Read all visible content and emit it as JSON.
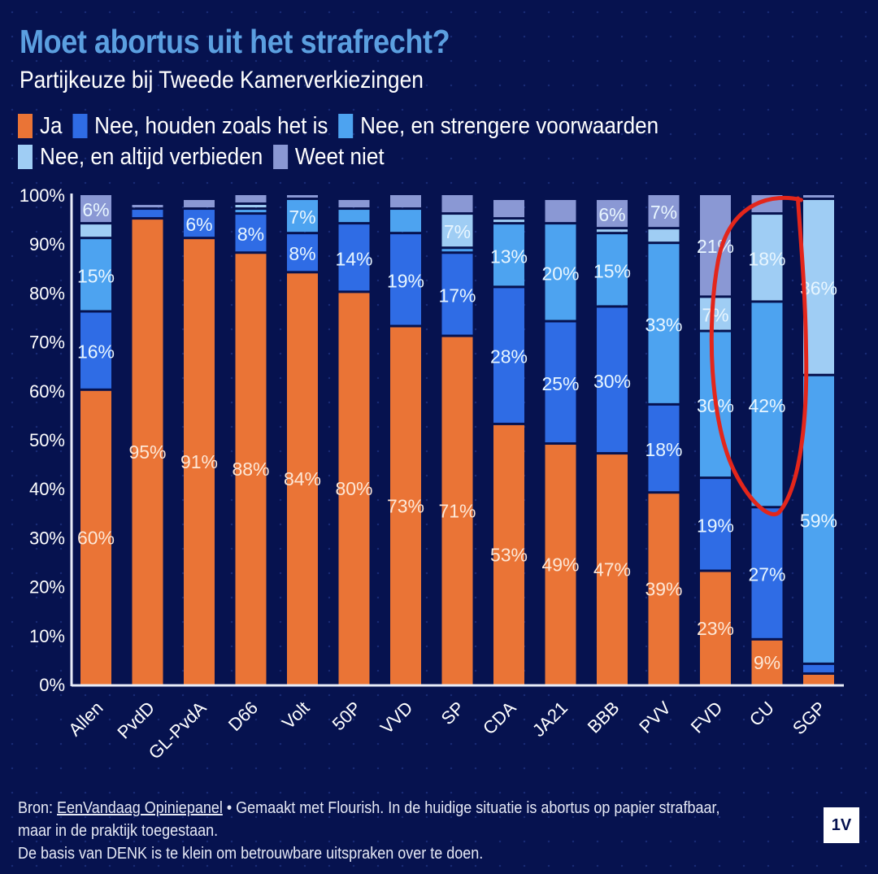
{
  "header": {
    "title": "Moet abortus uit het strafrecht?",
    "subtitle": "Partijkeuze bij Tweede Kamerverkiezingen"
  },
  "footer": {
    "source_prefix": "Bron: ",
    "source_link": "EenVandaag Opiniepanel",
    "line1_rest": " • Gemaakt met Flourish. In de huidige situatie is abortus op papier strafbaar, maar in de praktijk toegestaan.",
    "line2": "De basis van DENK is te klein om betrouwbare uitspraken over te doen.",
    "logo": "1V"
  },
  "annotation": {
    "type": "hand-drawn-circle",
    "color": "#e3261b",
    "target": "CU"
  },
  "chart_data": {
    "type": "bar",
    "stacked": true,
    "title": "Moet abortus uit het strafrecht?",
    "subtitle": "Partijkeuze bij Tweede Kamerverkiezingen",
    "xlabel": "",
    "ylabel": "",
    "ylim": [
      0,
      100
    ],
    "yticks": [
      "0%",
      "10%",
      "20%",
      "30%",
      "40%",
      "50%",
      "60%",
      "70%",
      "80%",
      "90%",
      "100%"
    ],
    "grid": false,
    "legend_position": "top-left",
    "categories": [
      "Allen",
      "PvdD",
      "GL-PvdA",
      "D66",
      "Volt",
      "50P",
      "VVD",
      "SP",
      "CDA",
      "JA21",
      "BBB",
      "PVV",
      "FVD",
      "CU",
      "SGP"
    ],
    "series": [
      {
        "name": "Ja",
        "color": "#ea7436",
        "values": [
          60,
          95,
          91,
          88,
          84,
          80,
          73,
          71,
          53,
          49,
          47,
          39,
          23,
          9,
          2
        ]
      },
      {
        "name": "Nee, houden zoals het is",
        "color": "#2f6ce5",
        "values": [
          16,
          2,
          6,
          8,
          8,
          14,
          19,
          17,
          28,
          25,
          30,
          18,
          19,
          27,
          2
        ]
      },
      {
        "name": "Nee, en strengere voorwaarden",
        "color": "#4da3f0",
        "values": [
          15,
          0,
          0,
          1,
          7,
          3,
          5,
          1,
          13,
          20,
          15,
          33,
          30,
          42,
          59
        ]
      },
      {
        "name": "Nee, en altijd verbieden",
        "color": "#9fcdf4",
        "values": [
          3,
          0,
          0,
          1,
          0,
          0,
          0,
          7,
          1,
          0,
          1,
          3,
          7,
          18,
          36
        ]
      },
      {
        "name": "Weet niet",
        "color": "#8a98d4",
        "values": [
          6,
          1,
          2,
          2,
          1,
          2,
          3,
          4,
          4,
          5,
          6,
          7,
          21,
          4,
          1
        ]
      }
    ],
    "labels_shown": [
      [
        "60%",
        "16%",
        "15%",
        "",
        "6%"
      ],
      [
        "95%",
        "",
        "",
        "",
        ""
      ],
      [
        "91%",
        "6%",
        "",
        "",
        ""
      ],
      [
        "88%",
        "8%",
        "",
        "",
        ""
      ],
      [
        "84%",
        "8%",
        "7%",
        "",
        ""
      ],
      [
        "80%",
        "14%",
        "",
        "",
        ""
      ],
      [
        "73%",
        "19%",
        "",
        "",
        ""
      ],
      [
        "71%",
        "17%",
        "",
        "7%",
        ""
      ],
      [
        "53%",
        "28%",
        "13%",
        "",
        ""
      ],
      [
        "49%",
        "25%",
        "20%",
        "",
        ""
      ],
      [
        "47%",
        "30%",
        "15%",
        "",
        "6%"
      ],
      [
        "39%",
        "18%",
        "33%",
        "",
        "7%"
      ],
      [
        "23%",
        "19%",
        "30%",
        "7%",
        "21%"
      ],
      [
        "9%",
        "27%",
        "42%",
        "18%",
        ""
      ],
      [
        "",
        "",
        "59%",
        "36%",
        ""
      ]
    ]
  }
}
